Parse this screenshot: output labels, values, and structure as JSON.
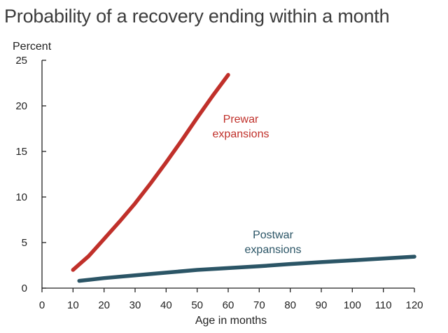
{
  "chart_data": {
    "type": "line",
    "title": "Probability of a recovery ending within a month",
    "xlabel": "Age in months",
    "ylabel": "Percent",
    "xlim": [
      0,
      120
    ],
    "ylim": [
      0,
      25
    ],
    "x_ticks": [
      0,
      10,
      20,
      30,
      40,
      50,
      60,
      70,
      80,
      90,
      100,
      110,
      120
    ],
    "y_ticks": [
      0,
      5,
      10,
      15,
      20,
      25
    ],
    "grid": false,
    "legend": "none",
    "series": [
      {
        "name": "Prewar expansions",
        "label_lines": [
          "Prewar",
          "expansions"
        ],
        "color": "#c0302a",
        "points": [
          [
            10,
            2.0
          ],
          [
            15,
            3.5
          ],
          [
            20,
            5.4
          ],
          [
            25,
            7.3
          ],
          [
            30,
            9.3
          ],
          [
            35,
            11.5
          ],
          [
            40,
            13.8
          ],
          [
            45,
            16.2
          ],
          [
            50,
            18.7
          ],
          [
            55,
            21.1
          ],
          [
            60,
            23.4
          ]
        ]
      },
      {
        "name": "Postwar expansions",
        "label_lines": [
          "Postwar",
          "expansions"
        ],
        "color": "#2b5566",
        "points": [
          [
            12,
            0.8
          ],
          [
            20,
            1.1
          ],
          [
            30,
            1.4
          ],
          [
            40,
            1.7
          ],
          [
            50,
            2.0
          ],
          [
            60,
            2.2
          ],
          [
            70,
            2.4
          ],
          [
            80,
            2.65
          ],
          [
            90,
            2.85
          ],
          [
            100,
            3.05
          ],
          [
            110,
            3.25
          ],
          [
            120,
            3.45
          ]
        ]
      }
    ]
  }
}
